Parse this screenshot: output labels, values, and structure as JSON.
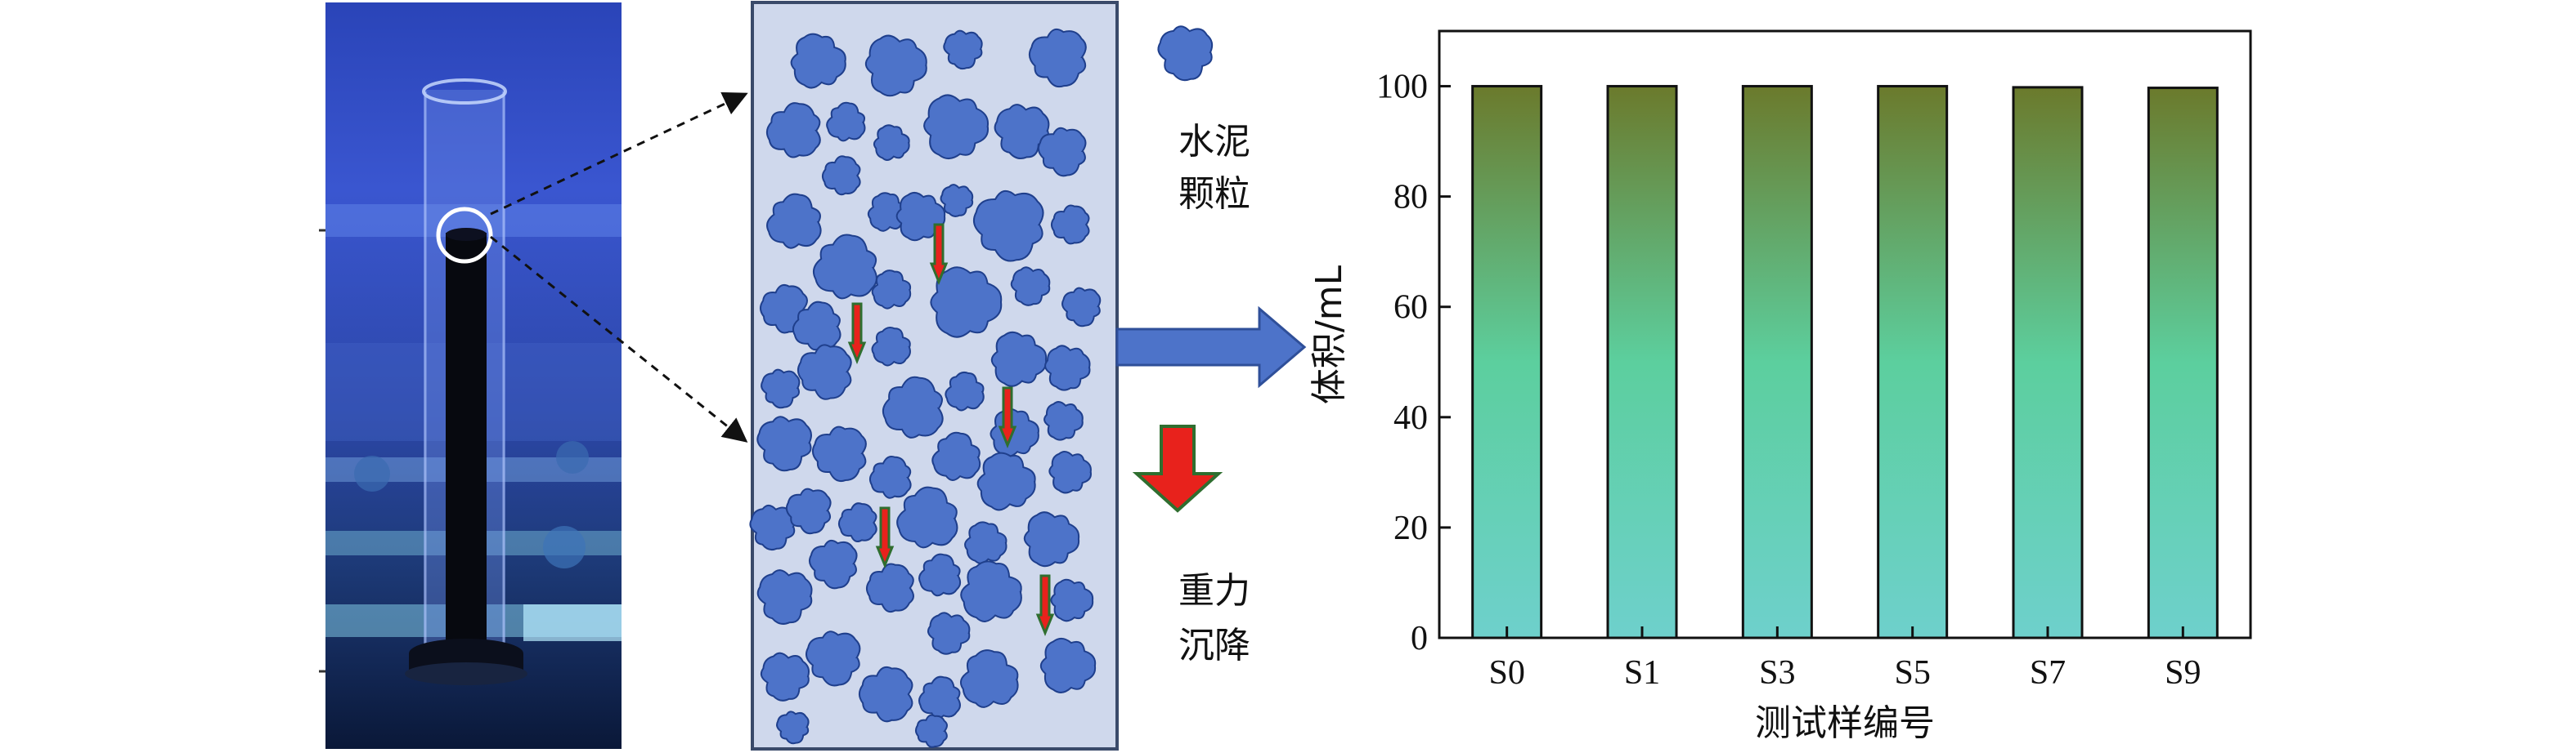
{
  "photo": {
    "icon_names": [
      "graduated-cylinder-photo"
    ]
  },
  "diagram": {
    "particle_label_line1": "水泥",
    "particle_label_line2": "颗粒",
    "gravity_label_line1": "重力",
    "gravity_label_line2": "沉降",
    "colors": {
      "particle": "#4d73c9",
      "particle_edge": "#1f3f8c",
      "box_fill": "#cfd8ec",
      "box_edge": "#3a4a6a",
      "arrow_red": "#e8221c",
      "arrow_green": "#2f6e2f",
      "big_arrow": "#4d73c9"
    }
  },
  "chart_data": {
    "type": "bar",
    "categories": [
      "S0",
      "S1",
      "S3",
      "S5",
      "S7",
      "S9"
    ],
    "values": [
      100,
      100,
      100,
      100,
      99.8,
      99.7
    ],
    "xlabel": "测试样编号",
    "ylabel": "体积/mL",
    "ylim": [
      0,
      110
    ],
    "yticks": [
      0,
      20,
      40,
      60,
      80,
      100
    ],
    "grid": false,
    "legend": "none",
    "bar_gradient": [
      "#6b7a2c",
      "#5ccf9e",
      "#6ed0cc"
    ]
  }
}
